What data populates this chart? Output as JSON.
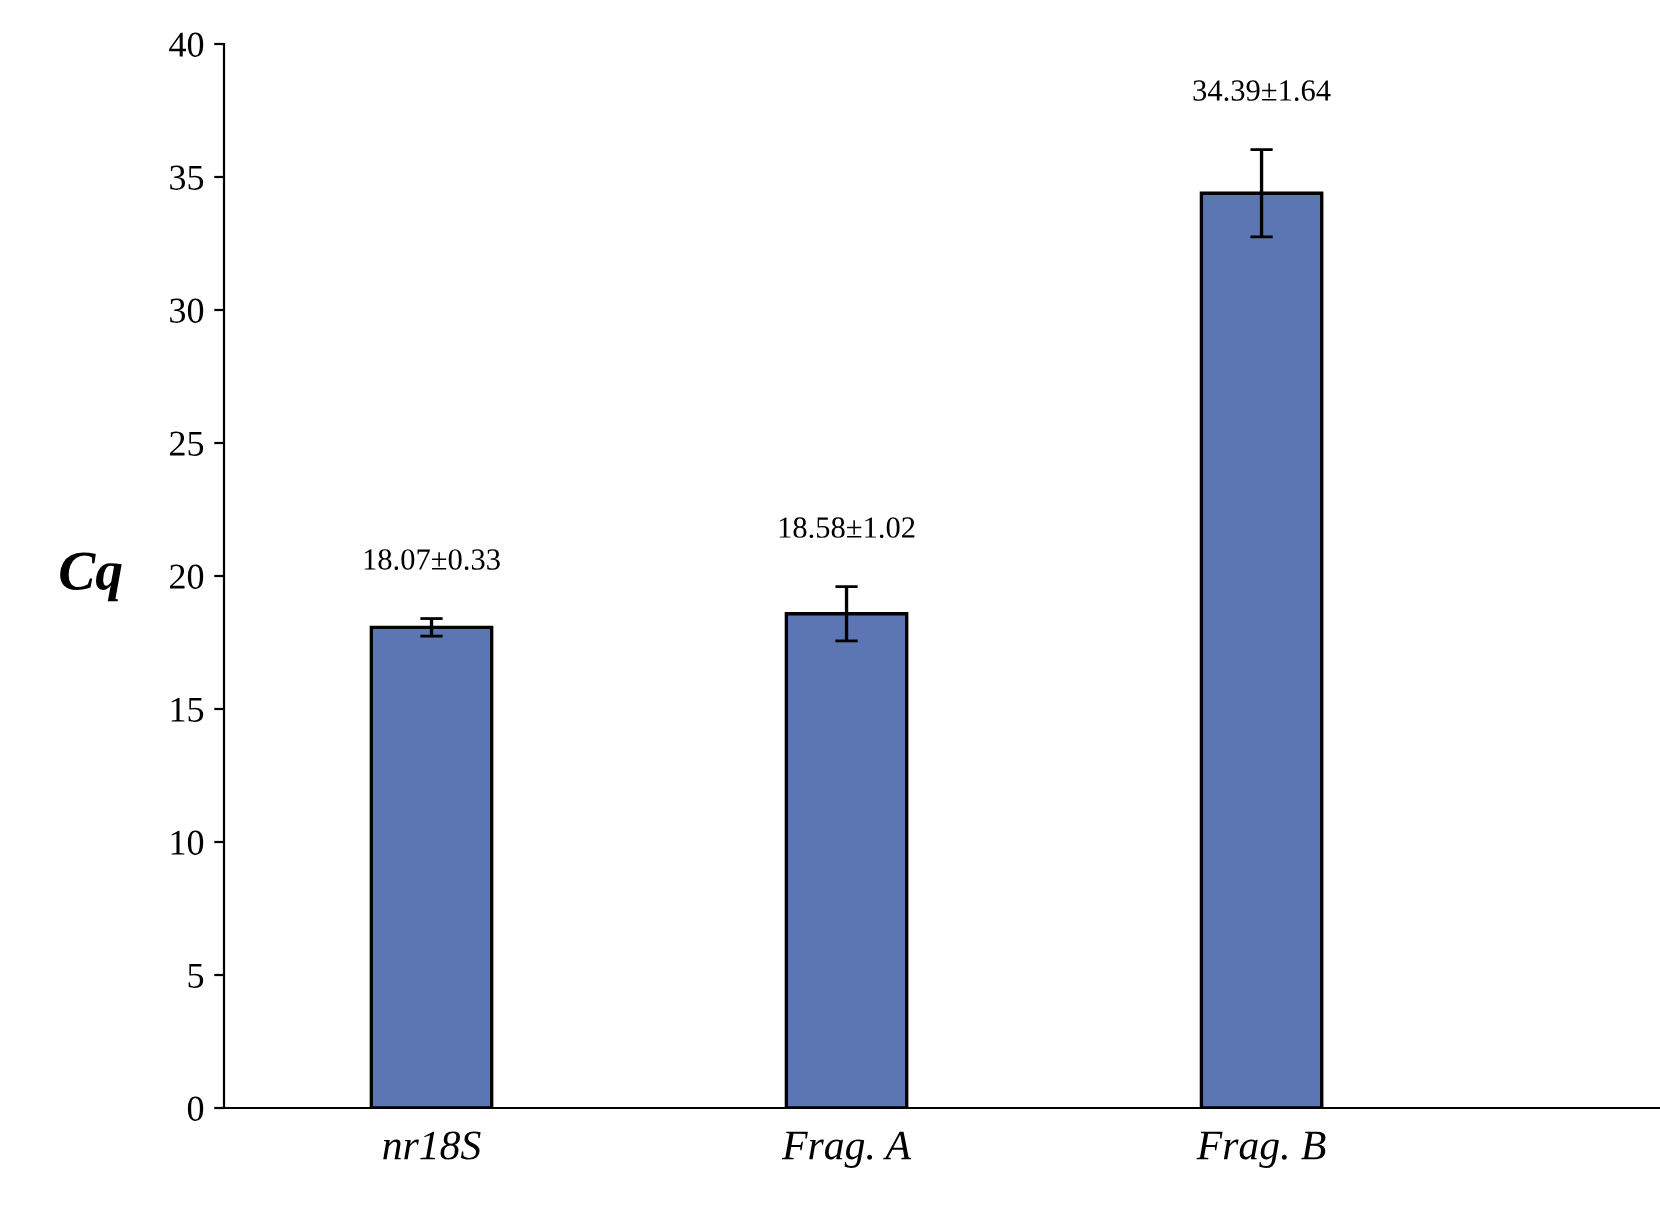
{
  "chart_data": {
    "type": "bar",
    "ylabel": "Cq",
    "categories": [
      "nr18S",
      "Frag. A",
      "Frag. B"
    ],
    "values": [
      18.07,
      18.58,
      34.39
    ],
    "errors": [
      0.33,
      1.02,
      1.64
    ],
    "value_labels": [
      "18.07±0.33",
      "18.58±1.02",
      "34.39±1.64"
    ],
    "color": "#5b76b3",
    "ylim": [
      0,
      40
    ],
    "yticks": [
      0,
      5,
      10,
      15,
      20,
      25,
      30,
      35,
      40
    ],
    "grid": false,
    "legend": false
  }
}
